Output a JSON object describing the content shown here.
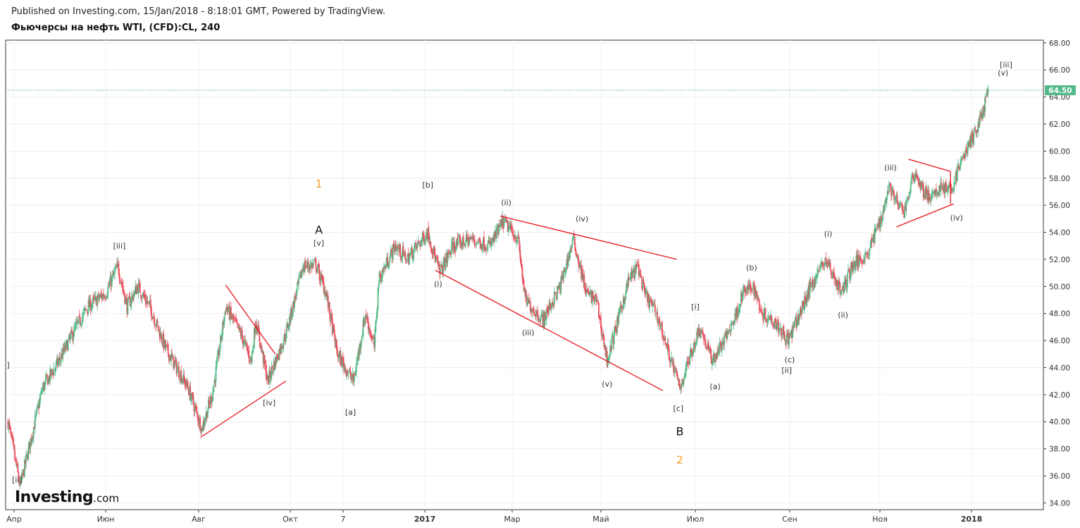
{
  "header": {
    "published": "Published on Investing.com, 15/Jan/2018 - 8:18:01 GMT, Powered by TradingView.",
    "title": "Фьючерсы на нефть WTI, (CFD):CL, 240"
  },
  "logo": {
    "main": "Investing",
    "suffix": ".com"
  },
  "colors": {
    "up": "#53b987",
    "down": "#eb4d5c",
    "trendline": "#e8121a",
    "wave_orange": "#f39a1d",
    "last_price_tag": "#53b987",
    "last_price_line": "#2b8a5e"
  },
  "chart_data": {
    "type": "candlestick",
    "symbol": "Фьючерсы на нефть WTI, (CFD):CL, 240",
    "ylim": [
      33.5,
      68.2
    ],
    "y_ticks": [
      "34.00",
      "36.00",
      "38.00",
      "40.00",
      "42.00",
      "44.00",
      "46.00",
      "48.00",
      "50.00",
      "52.00",
      "54.00",
      "56.00",
      "58.00",
      "60.00",
      "62.00",
      "64.00",
      "66.00",
      "68.00"
    ],
    "x_ticks": [
      {
        "label": "Апр",
        "bold": false
      },
      {
        "label": "Июн",
        "bold": false
      },
      {
        "label": "Авг",
        "bold": false
      },
      {
        "label": "Окт",
        "bold": false
      },
      {
        "label": "7",
        "bold": false
      },
      {
        "label": "2017",
        "bold": true
      },
      {
        "label": "Мар",
        "bold": false
      },
      {
        "label": "Май",
        "bold": false
      },
      {
        "label": "Июл",
        "bold": false
      },
      {
        "label": "Сен",
        "bold": false
      },
      {
        "label": "Ноя",
        "bold": false
      },
      {
        "label": "2018",
        "bold": true
      }
    ],
    "x_tick_dates": [
      "2016-04-01",
      "2016-06-01",
      "2016-08-01",
      "2016-10-01",
      "2016-11-07",
      "2017-01-01",
      "2017-03-01",
      "2017-05-01",
      "2017-07-01",
      "2017-09-01",
      "2017-11-01",
      "2018-01-01"
    ],
    "last_price": "64.50",
    "price_path": [
      [
        "2016-03-28",
        40.0
      ],
      [
        "2016-04-05",
        35.2
      ],
      [
        "2016-04-20",
        42.5
      ],
      [
        "2016-05-01",
        44.5
      ],
      [
        "2016-05-10",
        46.5
      ],
      [
        "2016-05-20",
        48.5
      ],
      [
        "2016-06-01",
        49.5
      ],
      [
        "2016-06-09",
        51.5
      ],
      [
        "2016-06-15",
        48.5
      ],
      [
        "2016-06-22",
        50.0
      ],
      [
        "2016-06-30",
        48.5
      ],
      [
        "2016-07-10",
        45.5
      ],
      [
        "2016-07-25",
        42.5
      ],
      [
        "2016-08-03",
        39.5
      ],
      [
        "2016-08-10",
        42.0
      ],
      [
        "2016-08-15",
        45.5
      ],
      [
        "2016-08-19",
        48.5
      ],
      [
        "2016-08-29",
        46.5
      ],
      [
        "2016-09-05",
        44.5
      ],
      [
        "2016-09-08",
        47.5
      ],
      [
        "2016-09-16",
        43.0
      ],
      [
        "2016-09-28",
        46.5
      ],
      [
        "2016-10-10",
        51.5
      ],
      [
        "2016-10-19",
        51.6
      ],
      [
        "2016-10-26",
        49.5
      ],
      [
        "2016-11-03",
        45.0
      ],
      [
        "2016-11-14",
        43.0
      ],
      [
        "2016-11-22",
        48.0
      ],
      [
        "2016-11-28",
        45.5
      ],
      [
        "2016-12-01",
        50.5
      ],
      [
        "2016-12-12",
        53.0
      ],
      [
        "2016-12-20",
        52.0
      ],
      [
        "2017-01-03",
        54.0
      ],
      [
        "2017-01-11",
        51.0
      ],
      [
        "2017-01-20",
        53.0
      ],
      [
        "2017-02-01",
        53.5
      ],
      [
        "2017-02-14",
        53.0
      ],
      [
        "2017-02-23",
        54.8
      ],
      [
        "2017-03-05",
        53.5
      ],
      [
        "2017-03-10",
        49.0
      ],
      [
        "2017-03-22",
        47.5
      ],
      [
        "2017-04-03",
        50.0
      ],
      [
        "2017-04-12",
        53.5
      ],
      [
        "2017-04-21",
        49.5
      ],
      [
        "2017-04-28",
        49.0
      ],
      [
        "2017-05-05",
        44.5
      ],
      [
        "2017-05-12",
        47.5
      ],
      [
        "2017-05-19",
        50.5
      ],
      [
        "2017-05-25",
        51.5
      ],
      [
        "2017-05-29",
        49.5
      ],
      [
        "2017-06-06",
        48.0
      ],
      [
        "2017-06-14",
        45.0
      ],
      [
        "2017-06-21",
        42.5
      ],
      [
        "2017-06-28",
        45.0
      ],
      [
        "2017-07-04",
        47.0
      ],
      [
        "2017-07-12",
        44.5
      ],
      [
        "2017-07-20",
        46.0
      ],
      [
        "2017-07-28",
        48.0
      ],
      [
        "2017-08-01",
        49.5
      ],
      [
        "2017-08-08",
        50.0
      ],
      [
        "2017-08-14",
        48.0
      ],
      [
        "2017-08-22",
        47.5
      ],
      [
        "2017-08-31",
        46.0
      ],
      [
        "2017-09-08",
        48.0
      ],
      [
        "2017-09-15",
        50.0
      ],
      [
        "2017-09-25",
        52.0
      ],
      [
        "2017-10-02",
        50.5
      ],
      [
        "2017-10-06",
        49.5
      ],
      [
        "2017-10-13",
        51.5
      ],
      [
        "2017-10-24",
        52.5
      ],
      [
        "2017-11-03",
        55.5
      ],
      [
        "2017-11-07",
        57.5
      ],
      [
        "2017-11-13",
        56.0
      ],
      [
        "2017-11-17",
        55.5
      ],
      [
        "2017-11-24",
        58.5
      ],
      [
        "2017-11-30",
        57.0
      ],
      [
        "2017-12-06",
        56.5
      ],
      [
        "2017-12-12",
        57.5
      ],
      [
        "2017-12-18",
        57.0
      ],
      [
        "2017-12-26",
        59.5
      ],
      [
        "2018-01-04",
        61.5
      ],
      [
        "2018-01-10",
        63.5
      ],
      [
        "2018-01-12",
        64.5
      ]
    ],
    "trendlines": [
      {
        "from": [
          "2016-08-03",
          38.9
        ],
        "to": [
          "2016-09-28",
          43.0
        ]
      },
      {
        "from": [
          "2016-08-19",
          50.1
        ],
        "to": [
          "2016-09-21",
          45.0
        ]
      },
      {
        "from": [
          "2017-01-08",
          51.2
        ],
        "to": [
          "2017-06-10",
          42.3
        ]
      },
      {
        "from": [
          "2017-02-21",
          55.2
        ],
        "to": [
          "2017-06-19",
          52.0
        ]
      },
      {
        "from": [
          "2017-11-12",
          54.4
        ],
        "to": [
          "2017-12-20",
          56.1
        ]
      },
      {
        "from": [
          "2017-11-20",
          59.4
        ],
        "to": [
          "2017-12-18",
          58.5
        ]
      },
      {
        "from": [
          "2017-12-18",
          56.1
        ],
        "to": [
          "2017-12-18",
          58.5
        ]
      }
    ],
    "wave_labels": [
      {
        "text": "]",
        "date": "2016-03-28",
        "price": 44.0,
        "style": "small"
      },
      {
        "text": "[ii]",
        "date": "2016-04-03",
        "price": 35.5,
        "style": "small"
      },
      {
        "text": "[iii]",
        "date": "2016-06-10",
        "price": 52.8,
        "style": "small"
      },
      {
        "text": "[iv]",
        "date": "2016-09-17",
        "price": 41.2,
        "style": "small"
      },
      {
        "text": "1",
        "date": "2016-10-21",
        "price": 57.3,
        "style": "orange"
      },
      {
        "text": "A",
        "date": "2016-10-21",
        "price": 53.9,
        "style": "big"
      },
      {
        "text": "[v]",
        "date": "2016-10-21",
        "price": 53.0,
        "style": "small"
      },
      {
        "text": "[a]",
        "date": "2016-11-12",
        "price": 40.5,
        "style": "small"
      },
      {
        "text": "[b]",
        "date": "2017-01-03",
        "price": 57.3,
        "style": "small"
      },
      {
        "text": "(i)",
        "date": "2017-01-10",
        "price": 50.0,
        "style": "small"
      },
      {
        "text": "(ii)",
        "date": "2017-02-25",
        "price": 56.0,
        "style": "small"
      },
      {
        "text": "(iii)",
        "date": "2017-03-12",
        "price": 46.4,
        "style": "small"
      },
      {
        "text": "(iv)",
        "date": "2017-04-18",
        "price": 54.8,
        "style": "small"
      },
      {
        "text": "(v)",
        "date": "2017-05-05",
        "price": 42.6,
        "style": "small"
      },
      {
        "text": "[c]",
        "date": "2017-06-20",
        "price": 40.8,
        "style": "small"
      },
      {
        "text": "B",
        "date": "2017-06-21",
        "price": 39.0,
        "style": "big"
      },
      {
        "text": "2",
        "date": "2017-06-21",
        "price": 36.9,
        "style": "orange"
      },
      {
        "text": "[i]",
        "date": "2017-07-01",
        "price": 48.3,
        "style": "small"
      },
      {
        "text": "(a)",
        "date": "2017-07-14",
        "price": 42.4,
        "style": "small"
      },
      {
        "text": "(b)",
        "date": "2017-08-07",
        "price": 51.2,
        "style": "small"
      },
      {
        "text": "(c)",
        "date": "2017-09-01",
        "price": 44.4,
        "style": "small"
      },
      {
        "text": "[ii]",
        "date": "2017-08-30",
        "price": 43.6,
        "style": "small"
      },
      {
        "text": "(i)",
        "date": "2017-09-27",
        "price": 53.7,
        "style": "small"
      },
      {
        "text": "(ii)",
        "date": "2017-10-07",
        "price": 47.7,
        "style": "small"
      },
      {
        "text": "(iii)",
        "date": "2017-11-08",
        "price": 58.6,
        "style": "small"
      },
      {
        "text": "(iv)",
        "date": "2017-12-22",
        "price": 54.9,
        "style": "small"
      },
      {
        "text": "(v)",
        "date": "2018-01-22",
        "price": 65.6,
        "style": "small"
      },
      {
        "text": "[iii]",
        "date": "2018-01-24",
        "price": 66.2,
        "style": "small"
      }
    ]
  }
}
